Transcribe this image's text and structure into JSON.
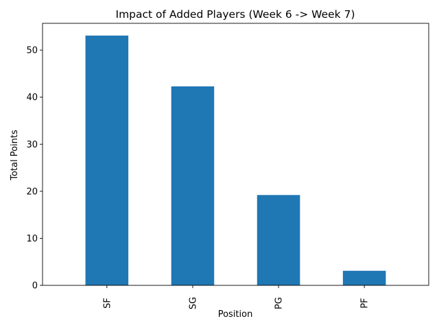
{
  "chart_data": {
    "type": "bar",
    "title": "Impact of Added Players (Week 6 -> Week 7)",
    "xlabel": "Position",
    "ylabel": "Total Points",
    "categories": [
      "SF",
      "SG",
      "PG",
      "PF"
    ],
    "values": [
      53.1,
      42.3,
      19.2,
      3.1
    ],
    "ylim": [
      0,
      55.7
    ],
    "yticks": [
      0,
      10,
      20,
      30,
      40,
      50
    ],
    "grid": false,
    "legend": "none",
    "bar_color": "#1f77b4",
    "x_tick_rotation": 90
  }
}
